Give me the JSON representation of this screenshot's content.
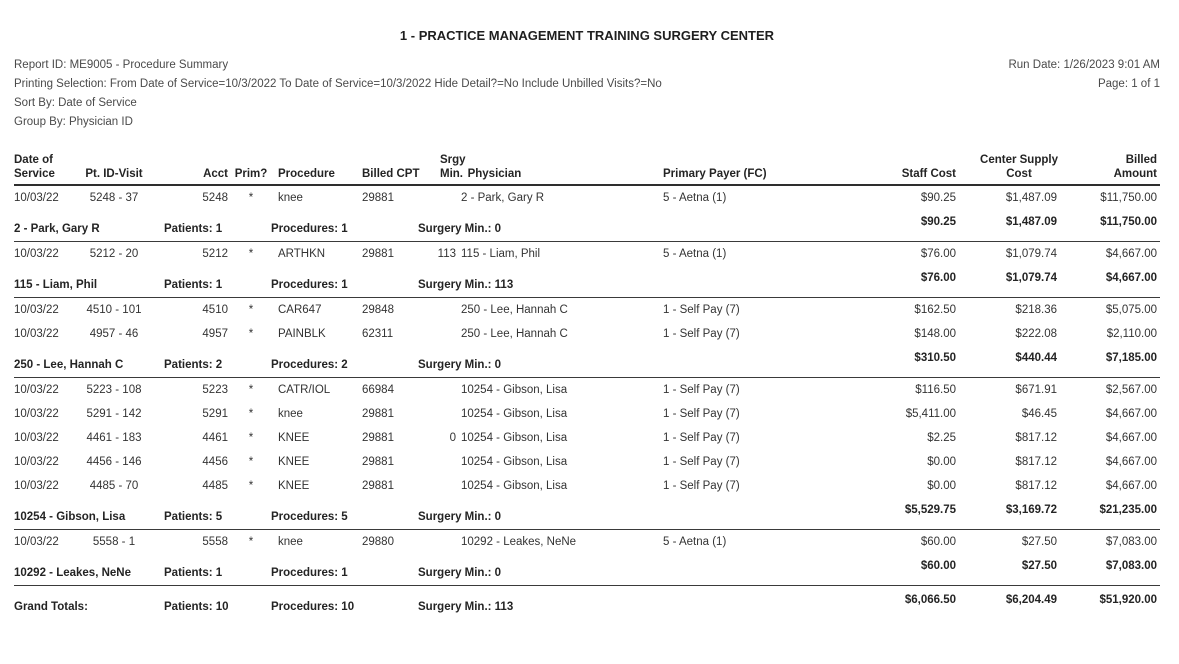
{
  "title": "1 - PRACTICE MANAGEMENT TRAINING SURGERY CENTER",
  "meta": {
    "report_id": "Report ID: ME9005 - Procedure Summary",
    "printing_selection": "Printing Selection: From Date of Service=10/3/2022 To Date of Service=10/3/2022 Hide Detail?=No Include Unbilled Visits?=No",
    "sort_by": "Sort By: Date of Service",
    "group_by": "Group By: Physician ID",
    "run_date": "Run Date: 1/26/2023 9:01 AM",
    "page": "Page: 1 of 1"
  },
  "columns": {
    "date_l1": "Date of",
    "date_l2": "Service",
    "pt_id_visit": "Pt. ID-Visit",
    "acct": "Acct",
    "prim": "Prim?",
    "procedure": "Procedure",
    "billed_cpt": "Billed CPT",
    "srgy_l1": "Srgy",
    "srgy_l2": "Min.",
    "physician": "Physician",
    "primary_payer": "Primary Payer (FC)",
    "staff_cost": "Staff Cost",
    "supply_l1": "Center Supply",
    "supply_l2": "Cost",
    "billed_l1": "Billed",
    "billed_l2": "Amount"
  },
  "groups": [
    {
      "rows": [
        {
          "date": "10/03/22",
          "pt_id_visit": "5248 - 37",
          "acct": "5248",
          "prim": "*",
          "procedure": "knee",
          "billed_cpt": "29881",
          "srgy_min": "",
          "physician": "2 - Park, Gary R",
          "primary_payer": "5 - Aetna (1)",
          "staff_cost": "$90.25",
          "center_supply_cost": "$1,487.09",
          "billed_amount": "$11,750.00"
        }
      ],
      "summary": {
        "label": "2 - Park, Gary R",
        "patients": "Patients: 1",
        "procedures": "Procedures: 1",
        "surgery_min": "Surgery Min.: 0",
        "staff_cost": "$90.25",
        "center_supply_cost": "$1,487.09",
        "billed_amount": "$11,750.00"
      }
    },
    {
      "rows": [
        {
          "date": "10/03/22",
          "pt_id_visit": "5212 - 20",
          "acct": "5212",
          "prim": "*",
          "procedure": "ARTHKN",
          "billed_cpt": "29881",
          "srgy_min": "113",
          "physician": "115 - Liam, Phil",
          "primary_payer": "5 - Aetna (1)",
          "staff_cost": "$76.00",
          "center_supply_cost": "$1,079.74",
          "billed_amount": "$4,667.00"
        }
      ],
      "summary": {
        "label": "115 - Liam, Phil",
        "patients": "Patients: 1",
        "procedures": "Procedures: 1",
        "surgery_min": "Surgery Min.: 113",
        "staff_cost": "$76.00",
        "center_supply_cost": "$1,079.74",
        "billed_amount": "$4,667.00"
      }
    },
    {
      "rows": [
        {
          "date": "10/03/22",
          "pt_id_visit": "4510 - 101",
          "acct": "4510",
          "prim": "*",
          "procedure": "CAR647",
          "billed_cpt": "29848",
          "srgy_min": "",
          "physician": "250 - Lee, Hannah C",
          "primary_payer": "1 - Self Pay (7)",
          "staff_cost": "$162.50",
          "center_supply_cost": "$218.36",
          "billed_amount": "$5,075.00"
        },
        {
          "date": "10/03/22",
          "pt_id_visit": "4957 - 46",
          "acct": "4957",
          "prim": "*",
          "procedure": "PAINBLK",
          "billed_cpt": "62311",
          "srgy_min": "",
          "physician": "250 - Lee, Hannah C",
          "primary_payer": "1 - Self Pay (7)",
          "staff_cost": "$148.00",
          "center_supply_cost": "$222.08",
          "billed_amount": "$2,110.00"
        }
      ],
      "summary": {
        "label": "250 - Lee, Hannah C",
        "patients": "Patients: 2",
        "procedures": "Procedures: 2",
        "surgery_min": "Surgery Min.: 0",
        "staff_cost": "$310.50",
        "center_supply_cost": "$440.44",
        "billed_amount": "$7,185.00"
      }
    },
    {
      "rows": [
        {
          "date": "10/03/22",
          "pt_id_visit": "5223 - 108",
          "acct": "5223",
          "prim": "*",
          "procedure": "CATR/IOL",
          "billed_cpt": "66984",
          "srgy_min": "",
          "physician": "10254 - Gibson, Lisa",
          "primary_payer": "1 - Self Pay (7)",
          "staff_cost": "$116.50",
          "center_supply_cost": "$671.91",
          "billed_amount": "$2,567.00"
        },
        {
          "date": "10/03/22",
          "pt_id_visit": "5291 - 142",
          "acct": "5291",
          "prim": "*",
          "procedure": "knee",
          "billed_cpt": "29881",
          "srgy_min": "",
          "physician": "10254 - Gibson, Lisa",
          "primary_payer": "1 - Self Pay (7)",
          "staff_cost": "$5,411.00",
          "center_supply_cost": "$46.45",
          "billed_amount": "$4,667.00"
        },
        {
          "date": "10/03/22",
          "pt_id_visit": "4461 - 183",
          "acct": "4461",
          "prim": "*",
          "procedure": "KNEE",
          "billed_cpt": "29881",
          "srgy_min": "0",
          "physician": "10254 - Gibson, Lisa",
          "primary_payer": "1 - Self Pay (7)",
          "staff_cost": "$2.25",
          "center_supply_cost": "$817.12",
          "billed_amount": "$4,667.00"
        },
        {
          "date": "10/03/22",
          "pt_id_visit": "4456 - 146",
          "acct": "4456",
          "prim": "*",
          "procedure": "KNEE",
          "billed_cpt": "29881",
          "srgy_min": "",
          "physician": "10254 - Gibson, Lisa",
          "primary_payer": "1 - Self Pay (7)",
          "staff_cost": "$0.00",
          "center_supply_cost": "$817.12",
          "billed_amount": "$4,667.00"
        },
        {
          "date": "10/03/22",
          "pt_id_visit": "4485 - 70",
          "acct": "4485",
          "prim": "*",
          "procedure": "KNEE",
          "billed_cpt": "29881",
          "srgy_min": "",
          "physician": "10254 - Gibson, Lisa",
          "primary_payer": "1 - Self Pay (7)",
          "staff_cost": "$0.00",
          "center_supply_cost": "$817.12",
          "billed_amount": "$4,667.00"
        }
      ],
      "summary": {
        "label": "10254 - Gibson, Lisa",
        "patients": "Patients: 5",
        "procedures": "Procedures: 5",
        "surgery_min": "Surgery Min.: 0",
        "staff_cost": "$5,529.75",
        "center_supply_cost": "$3,169.72",
        "billed_amount": "$21,235.00"
      }
    },
    {
      "rows": [
        {
          "date": "10/03/22",
          "pt_id_visit": "5558 - 1",
          "acct": "5558",
          "prim": "*",
          "procedure": "knee",
          "billed_cpt": "29880",
          "srgy_min": "",
          "physician": "10292 - Leakes, NeNe",
          "primary_payer": "5 - Aetna (1)",
          "staff_cost": "$60.00",
          "center_supply_cost": "$27.50",
          "billed_amount": "$7,083.00"
        }
      ],
      "summary": {
        "label": "10292 - Leakes, NeNe",
        "patients": "Patients: 1",
        "procedures": "Procedures: 1",
        "surgery_min": "Surgery Min.: 0",
        "staff_cost": "$60.00",
        "center_supply_cost": "$27.50",
        "billed_amount": "$7,083.00"
      }
    }
  ],
  "grand_totals": {
    "label": "Grand Totals:",
    "patients": "Patients: 10",
    "procedures": "Procedures: 10",
    "surgery_min": "Surgery Min.: 113",
    "staff_cost": "$6,066.50",
    "center_supply_cost": "$6,204.49",
    "billed_amount": "$51,920.00"
  }
}
